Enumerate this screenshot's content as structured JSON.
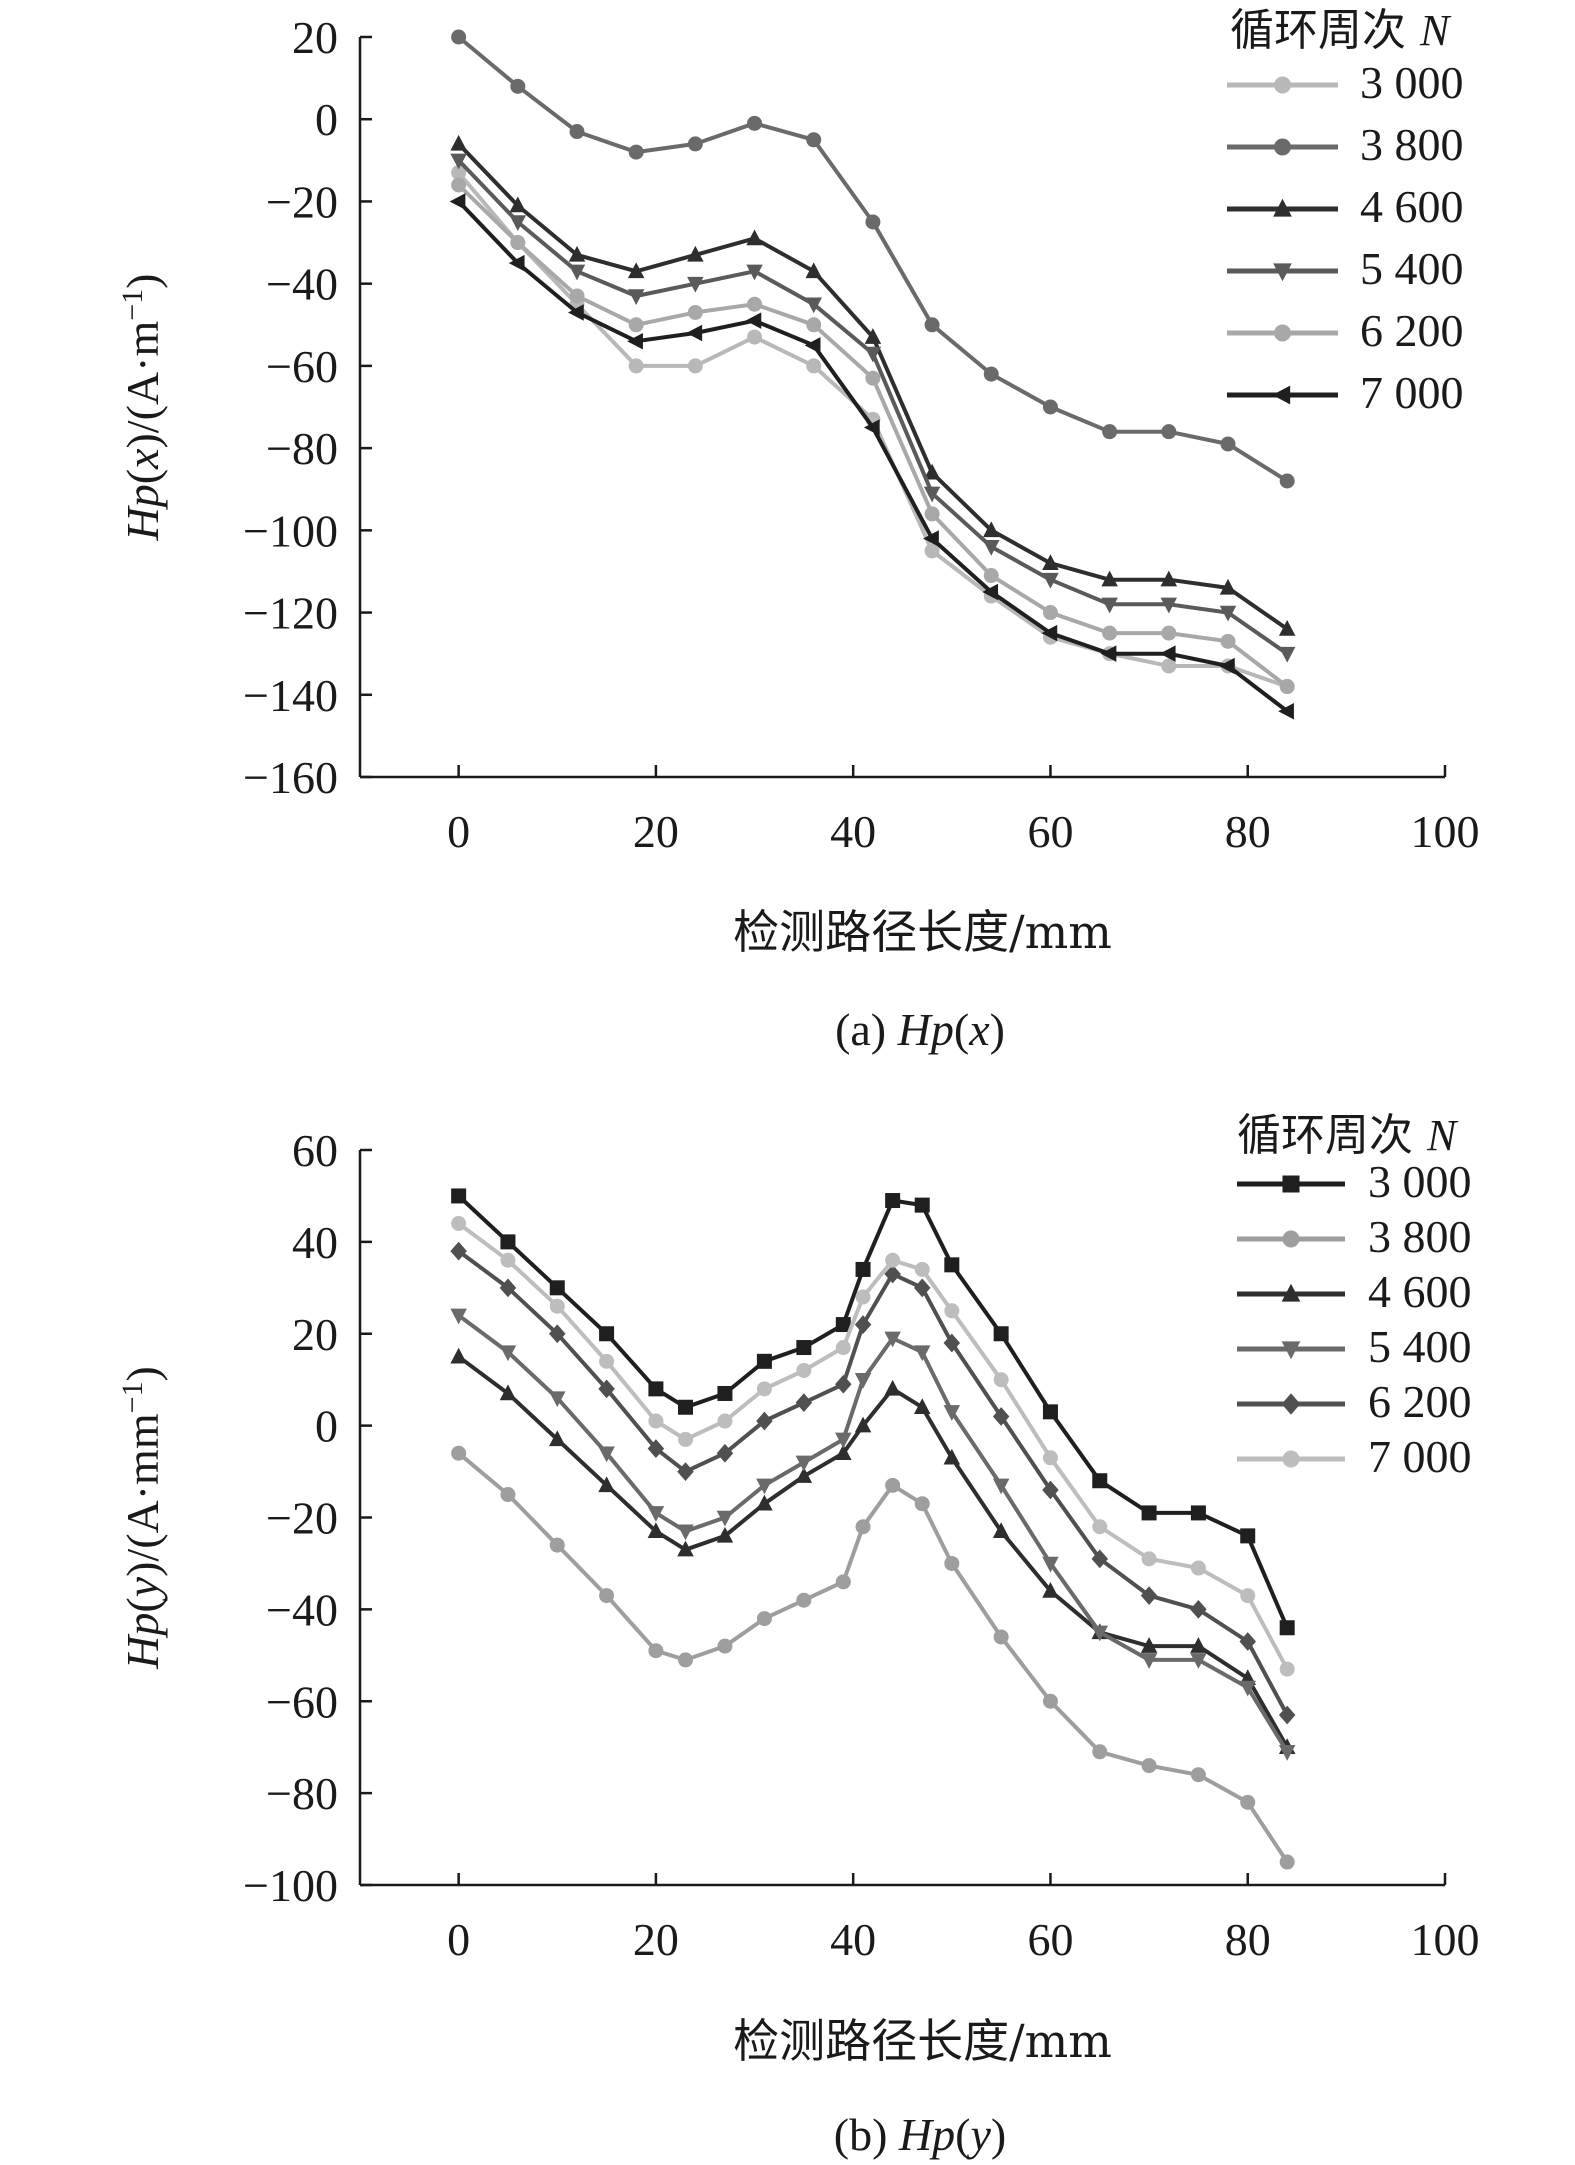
{
  "chart_data": [
    {
      "type": "line",
      "caption": "(a) Hp(x)",
      "caption_prefix": "(a) ",
      "caption_var": "Hp",
      "caption_arg": "x",
      "xlabel": "检测路径长度/mm",
      "ylabel": "Hp(x)/(A·m⁻¹)",
      "ylabel_parts": {
        "var": "Hp",
        "arg": "x",
        "unit": "/(A·m",
        "exp": "−1",
        "close": ")"
      },
      "xlim": [
        -10,
        100
      ],
      "ylim": [
        -160,
        20
      ],
      "xticks": [
        0,
        20,
        40,
        60,
        80,
        100
      ],
      "yticks": [
        20,
        0,
        -20,
        -40,
        -60,
        -80,
        -100,
        -120,
        -140,
        -160
      ],
      "ytick_labels": [
        "20",
        "0",
        "−20",
        "−40",
        "−60",
        "−80",
        "−100",
        "−120",
        "−140",
        "−160"
      ],
      "legend_title": "循环周次 N",
      "legend_title_main": "循环周次 ",
      "legend_title_var": "N",
      "legend_position": "top-right",
      "x": [
        0,
        6,
        12,
        18,
        24,
        30,
        36,
        42,
        48,
        54,
        60,
        66,
        72,
        78,
        84
      ],
      "series": [
        {
          "name": "3 000",
          "marker": "circle",
          "color": "#b8b8b8",
          "values": [
            -13,
            -30,
            -45,
            -60,
            -60,
            -53,
            -60,
            -73,
            -105,
            -116,
            -126,
            -130,
            -133,
            -133,
            -138
          ]
        },
        {
          "name": "3 800",
          "marker": "circle",
          "color": "#6a6a6a",
          "values": [
            20,
            8,
            -3,
            -8,
            -6,
            -1,
            -5,
            -25,
            -50,
            -62,
            -70,
            -76,
            -76,
            -79,
            -88
          ]
        },
        {
          "name": "4 600",
          "marker": "triangle",
          "color": "#2e2e2e",
          "values": [
            -6,
            -21,
            -33,
            -37,
            -33,
            -29,
            -37,
            -53,
            -86,
            -100,
            -108,
            -112,
            -112,
            -114,
            -124
          ]
        },
        {
          "name": "5 400",
          "marker": "triangle-down",
          "color": "#5a5a5a",
          "values": [
            -10,
            -25,
            -37,
            -43,
            -40,
            -37,
            -45,
            -57,
            -91,
            -104,
            -112,
            -118,
            -118,
            -120,
            -130
          ]
        },
        {
          "name": "6 200",
          "marker": "circle",
          "color": "#a8a8a8",
          "values": [
            -16,
            -30,
            -43,
            -50,
            -47,
            -45,
            -50,
            -63,
            -96,
            -111,
            -120,
            -125,
            -125,
            -127,
            -138
          ]
        },
        {
          "name": "7 000",
          "marker": "triangle-left",
          "color": "#1f1f1f",
          "values": [
            -20,
            -35,
            -47,
            -54,
            -52,
            -49,
            -55,
            -75,
            -102,
            -115,
            -125,
            -130,
            -130,
            -133,
            -144
          ]
        }
      ]
    },
    {
      "type": "line",
      "caption": "(b) Hp(y)",
      "caption_prefix": "(b) ",
      "caption_var": "Hp",
      "caption_arg": "y",
      "xlabel": "检测路径长度/mm",
      "ylabel": "Hp(y)/(A·mm⁻¹)",
      "ylabel_parts": {
        "var": "Hp",
        "arg": "y",
        "unit": "/(A·mm",
        "exp": "−1",
        "close": ")"
      },
      "xlim": [
        -10,
        100
      ],
      "ylim": [
        -100,
        60
      ],
      "xticks": [
        0,
        20,
        40,
        60,
        80,
        100
      ],
      "yticks": [
        60,
        40,
        20,
        0,
        -20,
        -40,
        -60,
        -80,
        -100
      ],
      "ytick_labels": [
        "60",
        "40",
        "20",
        "0",
        "−20",
        "−40",
        "−60",
        "−80",
        "−100"
      ],
      "legend_title": "循环周次 N",
      "legend_title_main": "循环周次 ",
      "legend_title_var": "N",
      "legend_position": "top-right",
      "x": [
        0,
        5,
        10,
        15,
        20,
        23,
        27,
        31,
        35,
        39,
        41,
        44,
        47,
        50,
        55,
        60,
        65,
        70,
        75,
        80,
        84
      ],
      "series": [
        {
          "name": "3 000",
          "marker": "square",
          "color": "#1f1f1f",
          "values": [
            50,
            40,
            30,
            20,
            8,
            4,
            7,
            14,
            17,
            22,
            34,
            49,
            48,
            35,
            20,
            3,
            -12,
            -19,
            -19,
            -24,
            -44
          ]
        },
        {
          "name": "3 800",
          "marker": "circle",
          "color": "#9e9e9e",
          "values": [
            -6,
            -15,
            -26,
            -37,
            -49,
            -51,
            -48,
            -42,
            -38,
            -34,
            -22,
            -13,
            -17,
            -30,
            -46,
            -60,
            -71,
            -74,
            -76,
            -82,
            -95
          ]
        },
        {
          "name": "4 600",
          "marker": "triangle",
          "color": "#2e2e2e",
          "values": [
            15,
            7,
            -3,
            -13,
            -23,
            -27,
            -24,
            -17,
            -11,
            -6,
            0,
            8,
            4,
            -7,
            -23,
            -36,
            -45,
            -48,
            -48,
            -55,
            -70
          ]
        },
        {
          "name": "5 400",
          "marker": "triangle-down",
          "color": "#6a6a6a",
          "values": [
            24,
            16,
            6,
            -6,
            -19,
            -23,
            -20,
            -13,
            -8,
            -3,
            10,
            19,
            16,
            3,
            -13,
            -30,
            -45,
            -51,
            -51,
            -57,
            -71
          ]
        },
        {
          "name": "6 200",
          "marker": "diamond",
          "color": "#505050",
          "values": [
            38,
            30,
            20,
            8,
            -5,
            -10,
            -6,
            1,
            5,
            9,
            22,
            33,
            30,
            18,
            2,
            -14,
            -29,
            -37,
            -40,
            -47,
            -63
          ]
        },
        {
          "name": "7 000",
          "marker": "circle",
          "color": "#bdbdbd",
          "values": [
            44,
            36,
            26,
            14,
            1,
            -3,
            1,
            8,
            12,
            17,
            28,
            36,
            34,
            25,
            10,
            -7,
            -22,
            -29,
            -31,
            -37,
            -53
          ]
        }
      ]
    }
  ]
}
